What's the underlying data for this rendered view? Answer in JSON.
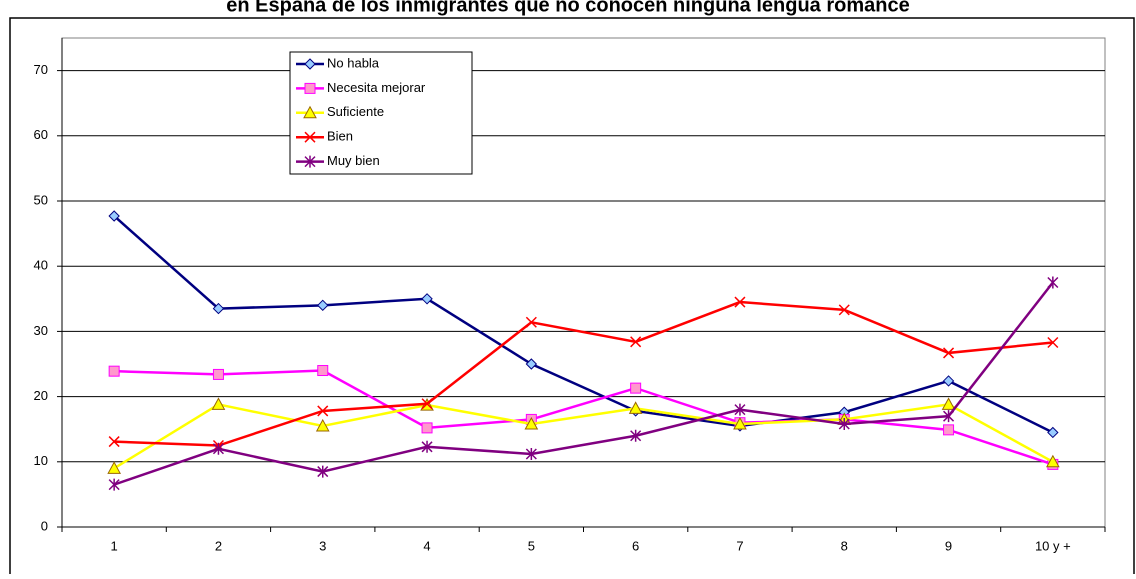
{
  "chart_data": {
    "type": "line",
    "title": "en España de los inmigrantes que no conocen ninguna lengua romance",
    "categories": [
      "1",
      "2",
      "3",
      "4",
      "5",
      "6",
      "7",
      "8",
      "9",
      "10 y +"
    ],
    "series": [
      {
        "name": "No habla",
        "color": "#000080",
        "marker": "diamond",
        "values": [
          47.7,
          33.5,
          34,
          35,
          25,
          17.8,
          15.5,
          17.6,
          22.4,
          14.5
        ]
      },
      {
        "name": "Necesita mejorar",
        "color": "#ff00ff",
        "marker": "square",
        "values": [
          23.9,
          23.4,
          24,
          15.2,
          16.5,
          21.3,
          16,
          16.5,
          14.9,
          9.6
        ]
      },
      {
        "name": "Suficiente",
        "color": "#ffff00",
        "marker": "triangle",
        "values": [
          9,
          18.8,
          15.5,
          18.7,
          15.8,
          18.2,
          15.8,
          16.5,
          18.8,
          10
        ]
      },
      {
        "name": "Bien",
        "color": "#ff0000",
        "marker": "x",
        "values": [
          13.1,
          12.5,
          17.8,
          18.9,
          31.4,
          28.4,
          34.5,
          33.3,
          26.7,
          28.3
        ]
      },
      {
        "name": "Muy bien",
        "color": "#800080",
        "marker": "star",
        "values": [
          6.5,
          12,
          8.5,
          12.3,
          11.2,
          14,
          18,
          15.8,
          17,
          37.5
        ]
      }
    ],
    "ylim": [
      0,
      75
    ],
    "yticks": [
      0,
      10,
      20,
      30,
      40,
      50,
      60,
      70
    ],
    "grid": true
  }
}
